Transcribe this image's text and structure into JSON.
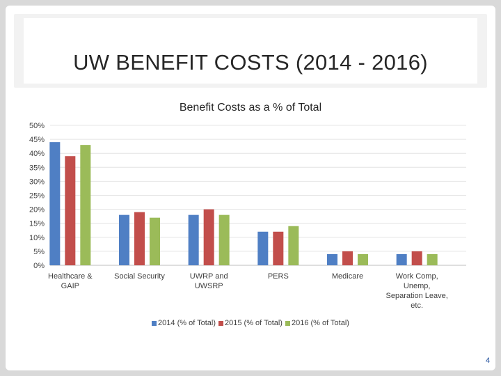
{
  "slide": {
    "title": "UW BENEFIT COSTS (2014 - 2016)",
    "page_number": "4"
  },
  "chart_data": {
    "type": "bar",
    "title": "Benefit Costs as a % of Total",
    "xlabel": "",
    "ylabel": "",
    "ylim": [
      0,
      50
    ],
    "y_ticks": [
      "0%",
      "5%",
      "10%",
      "15%",
      "20%",
      "25%",
      "30%",
      "35%",
      "40%",
      "45%",
      "50%"
    ],
    "y_tick_values": [
      0,
      5,
      10,
      15,
      20,
      25,
      30,
      35,
      40,
      45,
      50
    ],
    "grid": true,
    "legend_position": "bottom",
    "categories": [
      [
        "Healthcare &",
        "GAIP"
      ],
      [
        "Social Security"
      ],
      [
        "UWRP and",
        "UWSRP"
      ],
      [
        "PERS"
      ],
      [
        "Medicare"
      ],
      [
        "Work Comp,",
        "Unemp,",
        "Separation Leave,",
        "etc."
      ]
    ],
    "series": [
      {
        "name": "2014 (% of Total)",
        "color": "#4f7fc4",
        "values": [
          44,
          18,
          18,
          12,
          4,
          4
        ]
      },
      {
        "name": "2015 (% of Total)",
        "color": "#c24e4b",
        "values": [
          39,
          19,
          20,
          12,
          5,
          5
        ]
      },
      {
        "name": "2016 (% of Total)",
        "color": "#9bbb59",
        "values": [
          43,
          17,
          18,
          14,
          4,
          4
        ]
      }
    ]
  }
}
